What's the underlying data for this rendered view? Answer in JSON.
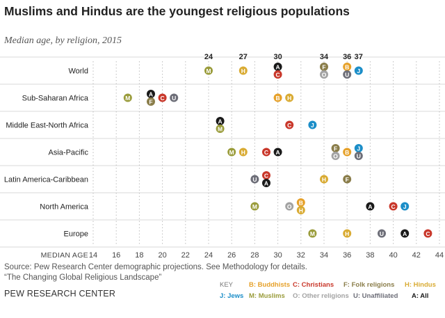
{
  "title": "Muslims and Hindus are the youngest religious populations",
  "subtitle": "Median age, by religion, 2015",
  "colors": {
    "A": "#1a1a1a",
    "B": "#e6a12a",
    "C": "#c9382b",
    "F": "#8a7d4a",
    "H": "#d9ab33",
    "J": "#1c8ec8",
    "M": "#9a9c3b",
    "O": "#a3a3a3",
    "U": "#6d6e78"
  },
  "key": {
    "heading": "KEY",
    "items": [
      {
        "code": "B",
        "label": "B: Buddhists"
      },
      {
        "code": "C",
        "label": "C: Christians"
      },
      {
        "code": "F",
        "label": "F: Folk religions"
      },
      {
        "code": "H",
        "label": "H: Hindus"
      },
      {
        "code": "J",
        "label": "J: Jews"
      },
      {
        "code": "M",
        "label": "M: Muslims"
      },
      {
        "code": "O",
        "label": "O: Other religions"
      },
      {
        "code": "U",
        "label": "U: Unaffiliated"
      },
      {
        "code": "A",
        "label": "A: All"
      }
    ]
  },
  "source": "Source: Pew Research Center demographic projections. See Methodology for details.",
  "source_line2": "“The Changing Global Religious Landscape”",
  "brand": "PEW RESEARCH CENTER",
  "chart_data": {
    "type": "scatter",
    "title": "Muslims and Hindus are the youngest religious populations",
    "subtitle": "Median age, by religion, 2015",
    "xlabel": "MEDIAN AGE",
    "xlim": [
      14,
      44
    ],
    "ticks": [
      14,
      16,
      18,
      20,
      22,
      24,
      26,
      28,
      30,
      32,
      34,
      36,
      38,
      40,
      42,
      44
    ],
    "regions": [
      {
        "name": "World",
        "points": [
          {
            "g": "M",
            "v": 24
          },
          {
            "g": "H",
            "v": 27
          },
          {
            "g": "A",
            "v": 30
          },
          {
            "g": "C",
            "v": 30
          },
          {
            "g": "F",
            "v": 34
          },
          {
            "g": "O",
            "v": 34
          },
          {
            "g": "B",
            "v": 36
          },
          {
            "g": "U",
            "v": 36
          },
          {
            "g": "J",
            "v": 37
          }
        ],
        "labels": [
          {
            "text": "24",
            "v": 24
          },
          {
            "text": "27",
            "v": 27
          },
          {
            "text": "30",
            "v": 30
          },
          {
            "text": "34",
            "v": 34
          },
          {
            "text": "36",
            "v": 36
          },
          {
            "text": "37",
            "v": 37
          }
        ]
      },
      {
        "name": "Sub-Saharan Africa",
        "points": [
          {
            "g": "M",
            "v": 17
          },
          {
            "g": "A",
            "v": 19
          },
          {
            "g": "F",
            "v": 19
          },
          {
            "g": "C",
            "v": 20
          },
          {
            "g": "U",
            "v": 21
          },
          {
            "g": "B",
            "v": 30
          },
          {
            "g": "H",
            "v": 31
          }
        ]
      },
      {
        "name": "Middle East-North Africa",
        "points": [
          {
            "g": "A",
            "v": 25
          },
          {
            "g": "M",
            "v": 25
          },
          {
            "g": "C",
            "v": 31
          },
          {
            "g": "J",
            "v": 33
          }
        ]
      },
      {
        "name": "Asia-Pacific",
        "points": [
          {
            "g": "M",
            "v": 26
          },
          {
            "g": "H",
            "v": 27
          },
          {
            "g": "C",
            "v": 29
          },
          {
            "g": "A",
            "v": 30
          },
          {
            "g": "F",
            "v": 35
          },
          {
            "g": "O",
            "v": 35
          },
          {
            "g": "B",
            "v": 36
          },
          {
            "g": "J",
            "v": 37
          },
          {
            "g": "U",
            "v": 37
          }
        ]
      },
      {
        "name": "Latin America-Caribbean",
        "points": [
          {
            "g": "U",
            "v": 28
          },
          {
            "g": "C",
            "v": 29
          },
          {
            "g": "A",
            "v": 29
          },
          {
            "g": "H",
            "v": 34
          },
          {
            "g": "F",
            "v": 36
          }
        ]
      },
      {
        "name": "North America",
        "points": [
          {
            "g": "M",
            "v": 28
          },
          {
            "g": "O",
            "v": 31
          },
          {
            "g": "B",
            "v": 32
          },
          {
            "g": "H",
            "v": 32
          },
          {
            "g": "A",
            "v": 38
          },
          {
            "g": "C",
            "v": 40
          },
          {
            "g": "J",
            "v": 41
          }
        ]
      },
      {
        "name": "Europe",
        "points": [
          {
            "g": "M",
            "v": 33
          },
          {
            "g": "H",
            "v": 36
          },
          {
            "g": "U",
            "v": 39
          },
          {
            "g": "A",
            "v": 41
          },
          {
            "g": "C",
            "v": 43
          }
        ]
      }
    ]
  }
}
